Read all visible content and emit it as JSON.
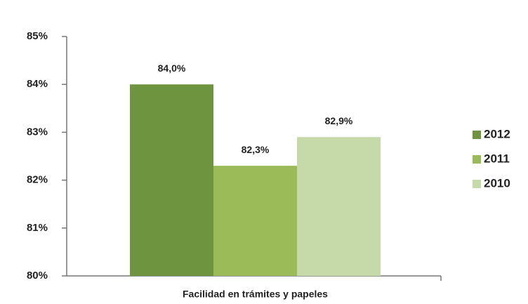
{
  "chart_data": {
    "type": "bar",
    "categories": [
      "Facilidad en trámites y papeles"
    ],
    "series": [
      {
        "name": "2012",
        "color": "#6f9440",
        "values": [
          84.0
        ],
        "value_labels": [
          "84,0%"
        ]
      },
      {
        "name": "2011",
        "color": "#9bbb59",
        "values": [
          82.3
        ],
        "value_labels": [
          "82,3%"
        ]
      },
      {
        "name": "2010",
        "color": "#c6d9a8",
        "values": [
          82.9
        ],
        "value_labels": [
          "82,9%"
        ]
      }
    ],
    "ylim": [
      80,
      85
    ],
    "yticks": [
      {
        "value": 80,
        "label": "80%"
      },
      {
        "value": 81,
        "label": "81%"
      },
      {
        "value": 82,
        "label": "82%"
      },
      {
        "value": 83,
        "label": "83%"
      },
      {
        "value": 84,
        "label": "84%"
      },
      {
        "value": 85,
        "label": "85%"
      }
    ],
    "grid": false,
    "legend": "right"
  }
}
